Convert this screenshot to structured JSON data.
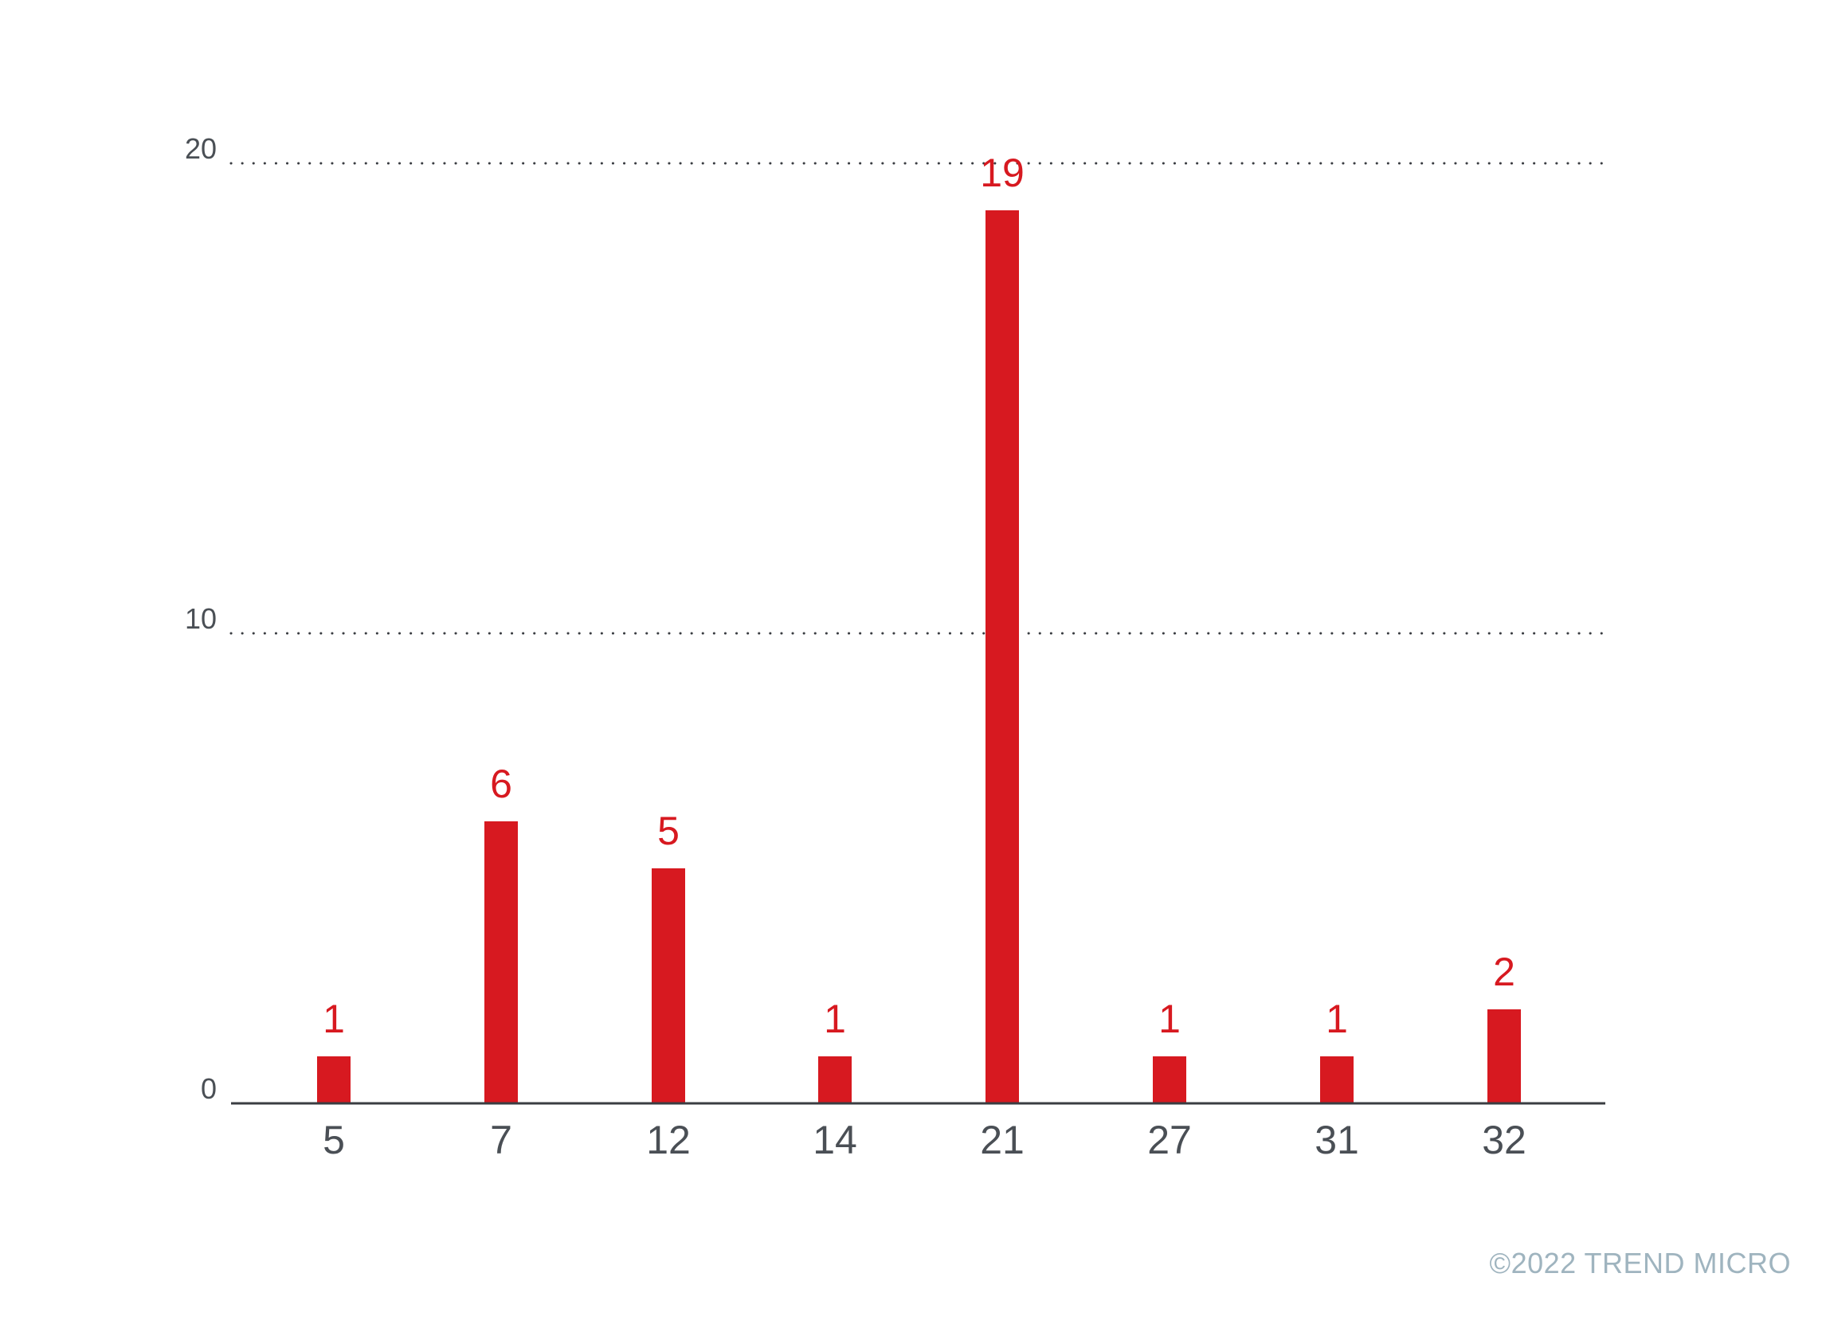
{
  "chart_data": {
    "type": "bar",
    "categories": [
      "5",
      "7",
      "12",
      "14",
      "21",
      "27",
      "31",
      "32"
    ],
    "values": [
      1,
      6,
      5,
      1,
      19,
      1,
      1,
      2
    ],
    "data_labels": [
      "1",
      "6",
      "5",
      "1",
      "19",
      "1",
      "1",
      "2"
    ],
    "title": "",
    "xlabel": "",
    "ylabel": "",
    "ylim": [
      0,
      20
    ],
    "yticks": [
      0,
      10,
      20
    ],
    "ytick_labels": [
      "0",
      "10",
      "20"
    ],
    "grid": "dotted horizontal",
    "legend": "none",
    "colors": {
      "bar": "#d71920",
      "label": "#d71920",
      "tick": "#4a4f55",
      "axis": "#3a3d42",
      "grid": "#3a3d42",
      "copyright": "#9fb4bf"
    }
  },
  "footer": {
    "copyright": "©2022 TREND MICRO"
  }
}
